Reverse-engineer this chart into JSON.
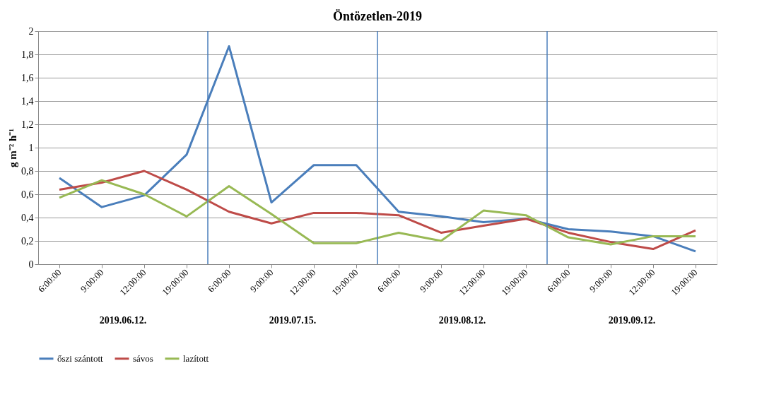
{
  "chart_data": {
    "type": "line",
    "title": "Öntözetlen-2019",
    "ylabel": "g m⁻² h⁻¹",
    "categories": [
      "6:00:00",
      "9:00:00",
      "12:00:00",
      "19:00:00",
      "6:00:00",
      "9:00:00",
      "12:00:00",
      "19:00:00",
      "6:00:00",
      "9:00:00",
      "12:00:00",
      "19:00:00",
      "6:00:00",
      "9:00:00",
      "12:00:00",
      "19:00:00"
    ],
    "series": [
      {
        "name": "őszi szántott",
        "color": "#4a7ebb",
        "values": [
          0.74,
          0.49,
          0.59,
          0.94,
          1.87,
          0.53,
          0.85,
          0.85,
          0.45,
          0.41,
          0.36,
          0.39,
          0.3,
          0.28,
          0.24,
          0.11
        ]
      },
      {
        "name": "sávos",
        "color": "#be4b48",
        "values": [
          0.64,
          0.7,
          0.8,
          0.64,
          0.45,
          0.35,
          0.44,
          0.44,
          0.42,
          0.27,
          0.33,
          0.39,
          0.27,
          0.19,
          0.13,
          0.29
        ]
      },
      {
        "name": "lazított",
        "color": "#98b954",
        "values": [
          0.57,
          0.72,
          0.6,
          0.41,
          0.67,
          0.43,
          0.18,
          0.18,
          0.27,
          0.2,
          0.46,
          0.42,
          0.23,
          0.17,
          0.24,
          0.24
        ]
      }
    ],
    "ylim": [
      0,
      2
    ],
    "yticks": [
      0,
      {
        "value": 0.2,
        "label": "0,2"
      },
      {
        "value": 0.4,
        "label": "0,4"
      },
      {
        "value": 0.6,
        "label": "0,6"
      },
      {
        "value": 0.8,
        "label": "0,8"
      },
      1,
      {
        "value": 1.2,
        "label": "1,2"
      },
      {
        "value": 1.4,
        "label": "1,4"
      },
      {
        "value": 1.6,
        "label": "1,6"
      },
      {
        "value": 1.8,
        "label": "1,8"
      },
      2
    ],
    "annotations": [
      "2019.06.12.",
      "2019.07.15.",
      "2019.08.12.",
      "2019.09.12."
    ],
    "grid": "y",
    "legend": "bottom",
    "marker": "none",
    "line_style": "solid"
  }
}
